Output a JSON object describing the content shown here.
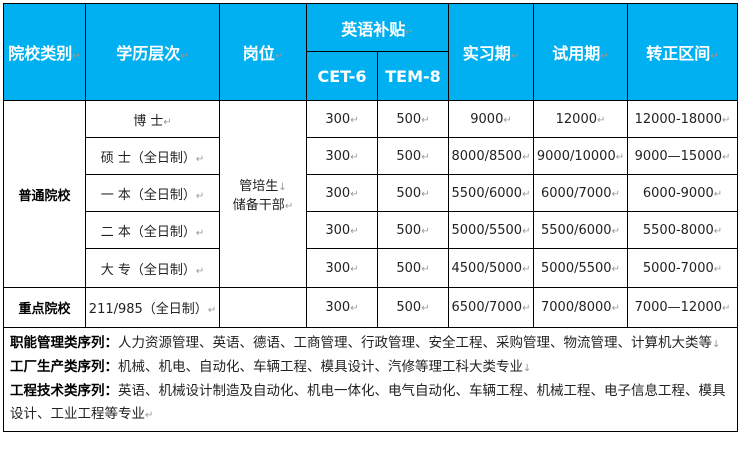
{
  "header": {
    "school_type": "院校类别",
    "education": "学历层次",
    "position": "岗位",
    "english_allowance": "英语补贴",
    "cet6": "CET-6",
    "tem8": "TEM-8",
    "internship": "实习期",
    "probation": "试用期",
    "regular": "转正区间"
  },
  "groups": {
    "ordinary": "普通院校",
    "key": "重点院校",
    "position_line1": "管培生",
    "position_line2": "储备干部"
  },
  "rows": [
    {
      "education": "博 士",
      "cet6": "300",
      "tem8": "500",
      "internship": "9000",
      "probation": "12000",
      "regular": "12000-18000"
    },
    {
      "education": "硕 士（全日制）",
      "cet6": "300",
      "tem8": "500",
      "internship": "8000/8500",
      "probation": "9000/10000",
      "regular": "9000—15000"
    },
    {
      "education": "一 本（全日制）",
      "cet6": "300",
      "tem8": "500",
      "internship": "5500/6000",
      "probation": "6000/7000",
      "regular": "6000-9000"
    },
    {
      "education": "二 本（全日制）",
      "cet6": "300",
      "tem8": "500",
      "internship": "5000/5500",
      "probation": "5500/6000",
      "regular": "5500-8000"
    },
    {
      "education": "大 专（全日制）",
      "cet6": "300",
      "tem8": "500",
      "internship": "4500/5000",
      "probation": "5000/5500",
      "regular": "5000-7000"
    },
    {
      "education": "211/985（全日制）",
      "cet6": "300",
      "tem8": "500",
      "internship": "6500/7000",
      "probation": "7000/8000",
      "regular": "7000—12000"
    }
  ],
  "notes": [
    {
      "label": "职能管理类序列：",
      "text": "人力资源管理、英语、德语、工商管理、行政管理、安全工程、采购管理、物流管理、计算机大类等"
    },
    {
      "label": "工厂生产类序列：",
      "text": "机械、机电、自动化、车辆工程、模具设计、汽修等理工科大类专业"
    },
    {
      "label": "工程技术类序列：",
      "text": "英语、机械设计制造及自动化、机电一体化、电气自动化、车辆工程、机械工程、电子信息工程、模具设计、工业工程等专业"
    }
  ],
  "colors": {
    "header_bg": "#00b0f0",
    "header_text": "#ffffff"
  }
}
